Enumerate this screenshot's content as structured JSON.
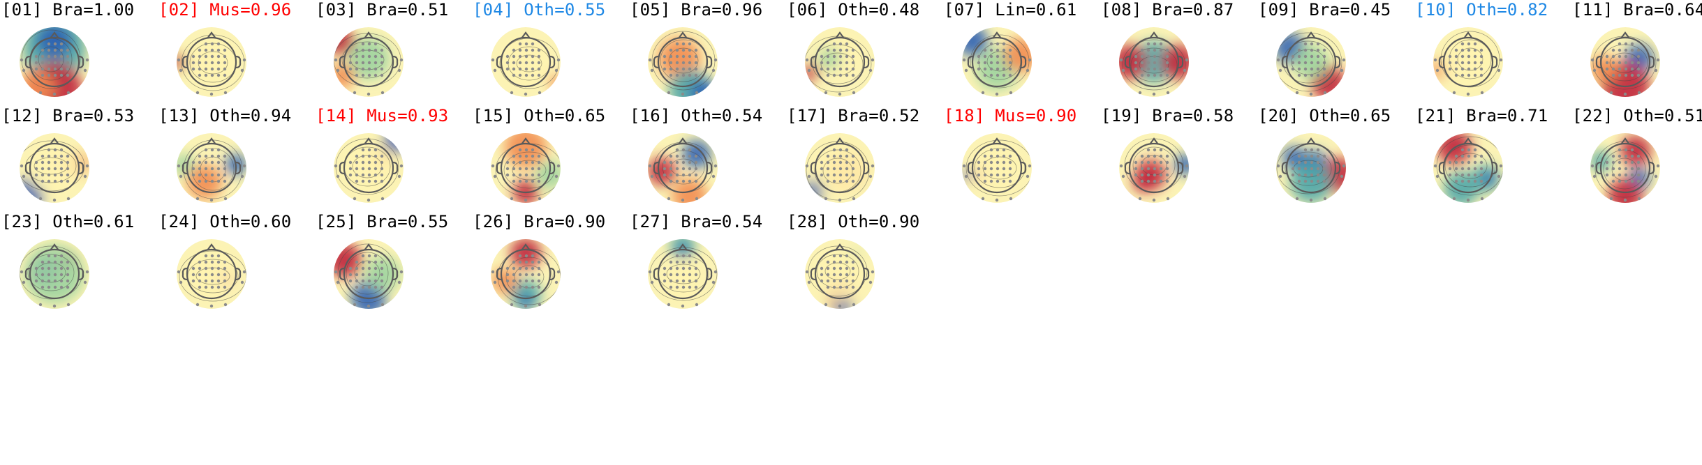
{
  "colors": {
    "normal": "#000000",
    "muscle": "#ff0000",
    "other_blue": "#1e88e5",
    "head_outline": "#555555",
    "electrode": "#8a8a8a"
  },
  "colormap": "Spectral_r",
  "components": [
    {
      "label": "[01] Bra=1.00",
      "color": "normal"
    },
    {
      "label": "[02] Mus=0.96",
      "color": "muscle"
    },
    {
      "label": "[03] Bra=0.51",
      "color": "normal"
    },
    {
      "label": "[04] Oth=0.55",
      "color": "other_blue"
    },
    {
      "label": "[05] Bra=0.96",
      "color": "normal"
    },
    {
      "label": "[06] Oth=0.48",
      "color": "normal"
    },
    {
      "label": "[07] Lin=0.61",
      "color": "normal"
    },
    {
      "label": "[08] Bra=0.87",
      "color": "normal"
    },
    {
      "label": "[09] Bra=0.45",
      "color": "normal"
    },
    {
      "label": "[10] Oth=0.82",
      "color": "other_blue"
    },
    {
      "label": "[11] Bra=0.64",
      "color": "normal"
    },
    {
      "label": "[12] Bra=0.53",
      "color": "normal"
    },
    {
      "label": "[13] Oth=0.94",
      "color": "normal"
    },
    {
      "label": "[14] Mus=0.93",
      "color": "muscle"
    },
    {
      "label": "[15] Oth=0.65",
      "color": "normal"
    },
    {
      "label": "[16] Oth=0.54",
      "color": "normal"
    },
    {
      "label": "[17] Bra=0.52",
      "color": "normal"
    },
    {
      "label": "[18] Mus=0.90",
      "color": "muscle"
    },
    {
      "label": "[19] Bra=0.58",
      "color": "normal"
    },
    {
      "label": "[20] Oth=0.65",
      "color": "normal"
    },
    {
      "label": "[21] Bra=0.71",
      "color": "normal"
    },
    {
      "label": "[22] Oth=0.51",
      "color": "normal"
    },
    {
      "label": "[23] Oth=0.61",
      "color": "normal"
    },
    {
      "label": "[24] Oth=0.60",
      "color": "normal"
    },
    {
      "label": "[25] Bra=0.55",
      "color": "normal"
    },
    {
      "label": "[26] Bra=0.90",
      "color": "normal"
    },
    {
      "label": "[27] Bra=0.54",
      "color": "normal"
    },
    {
      "label": "[28] Oth=0.90",
      "color": "normal"
    }
  ]
}
